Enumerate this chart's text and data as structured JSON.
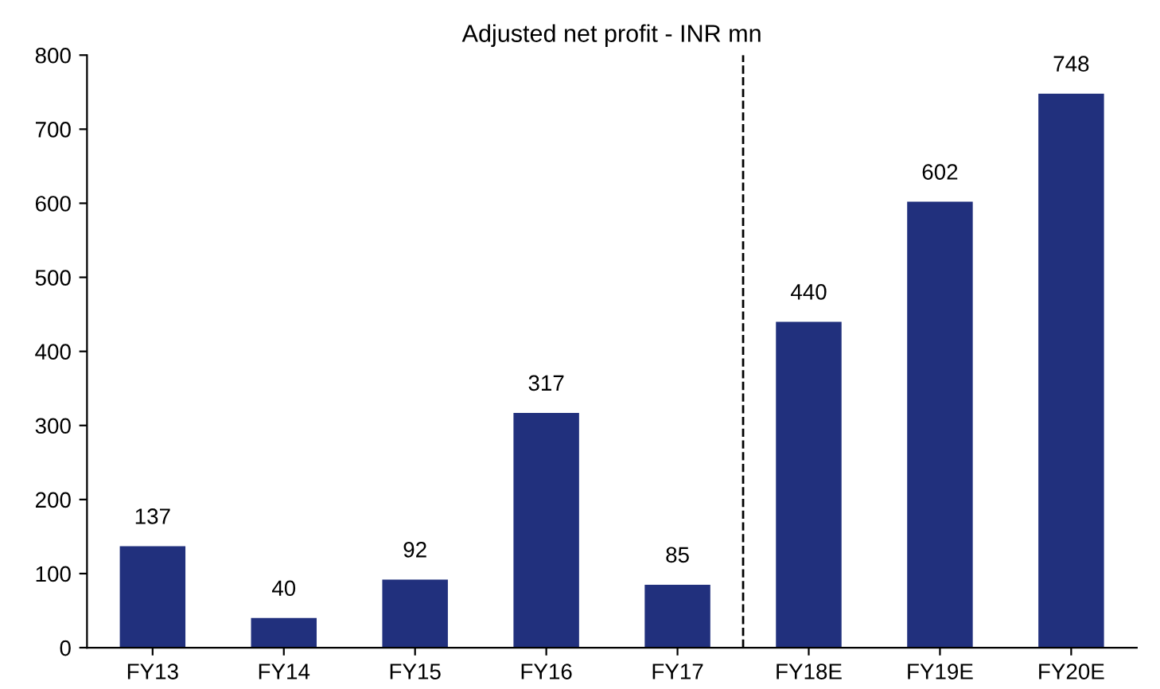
{
  "chart_data": {
    "type": "bar",
    "title": "Adjusted net profit - INR mn",
    "categories": [
      "FY13",
      "FY14",
      "FY15",
      "FY16",
      "FY17",
      "FY18E",
      "FY19E",
      "FY20E"
    ],
    "values": [
      137,
      40,
      92,
      317,
      85,
      440,
      602,
      748
    ],
    "color": "#21307d",
    "data_labels": true,
    "ylim": [
      0,
      800
    ],
    "yticks": [
      0,
      100,
      200,
      300,
      400,
      500,
      600,
      700,
      800
    ],
    "grid": false,
    "legend": false
  }
}
